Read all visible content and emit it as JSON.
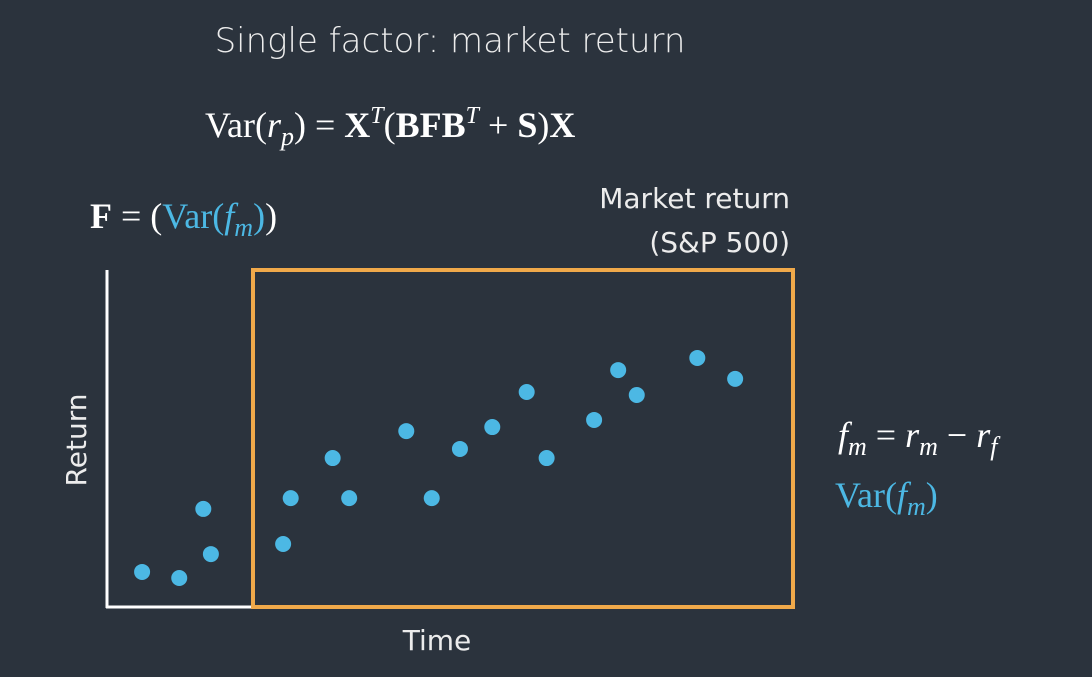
{
  "chart_data": {
    "type": "scatter",
    "title": "Single factor: market return",
    "x_label": "Time",
    "y_label": "Return",
    "x": [
      5.1,
      10.5,
      14.0,
      15.1,
      25.6,
      26.7,
      32.8,
      35.2,
      43.5,
      47.2,
      51.3,
      56.0,
      61.0,
      63.9,
      70.8,
      74.3,
      77.0,
      85.8,
      91.3
    ],
    "values": [
      10.4,
      8.6,
      29.1,
      15.7,
      18.7,
      32.3,
      44.2,
      32.3,
      52.2,
      32.3,
      46.9,
      53.4,
      63.8,
      44.2,
      55.5,
      70.3,
      62.9,
      73.9,
      67.7
    ],
    "color": "#4cb8e4",
    "xlim": [
      0,
      100
    ],
    "ylim": [
      0,
      100
    ],
    "grid": false,
    "highlight_label": [
      "Market return",
      "(S&P 500)"
    ],
    "formulas": [
      [
        {
          "text": "Var(",
          "style": "normal",
          "color": "#ffffff"
        },
        {
          "text": "r",
          "style": "italic",
          "color": "#ffffff"
        },
        {
          "text": "p",
          "style": "sub",
          "color": "#ffffff"
        },
        {
          "text": ") = ",
          "style": "normal",
          "color": "#ffffff"
        },
        {
          "text": "X",
          "style": "bold",
          "color": "#ffffff"
        },
        {
          "text": "T",
          "style": "sup",
          "color": "#ffffff"
        },
        {
          "text": "(",
          "style": "normal",
          "color": "#ffffff"
        },
        {
          "text": "BFB",
          "style": "bold",
          "color": "#ffffff"
        },
        {
          "text": "T",
          "style": "sup",
          "color": "#ffffff"
        },
        {
          "text": " + ",
          "style": "normal",
          "color": "#ffffff"
        },
        {
          "text": "S",
          "style": "bold",
          "color": "#ffffff"
        },
        {
          "text": ")",
          "style": "normal",
          "color": "#ffffff"
        },
        {
          "text": "X",
          "style": "bold",
          "color": "#ffffff"
        }
      ],
      [
        {
          "text": "F",
          "style": "bold",
          "color": "#ffffff"
        },
        {
          "text": " = (",
          "style": "normal",
          "color": "#ffffff"
        },
        {
          "text": "Var(",
          "style": "normal",
          "color": "#4cb8e4"
        },
        {
          "text": "f",
          "style": "italic",
          "color": "#4cb8e4"
        },
        {
          "text": "m",
          "style": "sub",
          "color": "#4cb8e4"
        },
        {
          "text": ")",
          "style": "normal",
          "color": "#4cb8e4"
        },
        {
          "text": ")",
          "style": "normal",
          "color": "#ffffff"
        }
      ],
      [
        {
          "text": "f",
          "style": "italic",
          "color": "#ffffff"
        },
        {
          "text": "m",
          "style": "sub",
          "color": "#ffffff"
        },
        {
          "text": " = ",
          "style": "normal",
          "color": "#ffffff"
        },
        {
          "text": "r",
          "style": "italic",
          "color": "#ffffff"
        },
        {
          "text": "m",
          "style": "sub",
          "color": "#ffffff"
        },
        {
          "text": " − ",
          "style": "normal",
          "color": "#ffffff"
        },
        {
          "text": "r",
          "style": "italic",
          "color": "#ffffff"
        },
        {
          "text": "f",
          "style": "sub",
          "color": "#ffffff"
        }
      ],
      [
        {
          "text": "Var(",
          "style": "normal",
          "color": "#4cb8e4"
        },
        {
          "text": "f",
          "style": "italic",
          "color": "#4cb8e4"
        },
        {
          "text": "m",
          "style": "sub",
          "color": "#4cb8e4"
        },
        {
          "text": ")",
          "style": "normal",
          "color": "#4cb8e4"
        }
      ]
    ]
  }
}
